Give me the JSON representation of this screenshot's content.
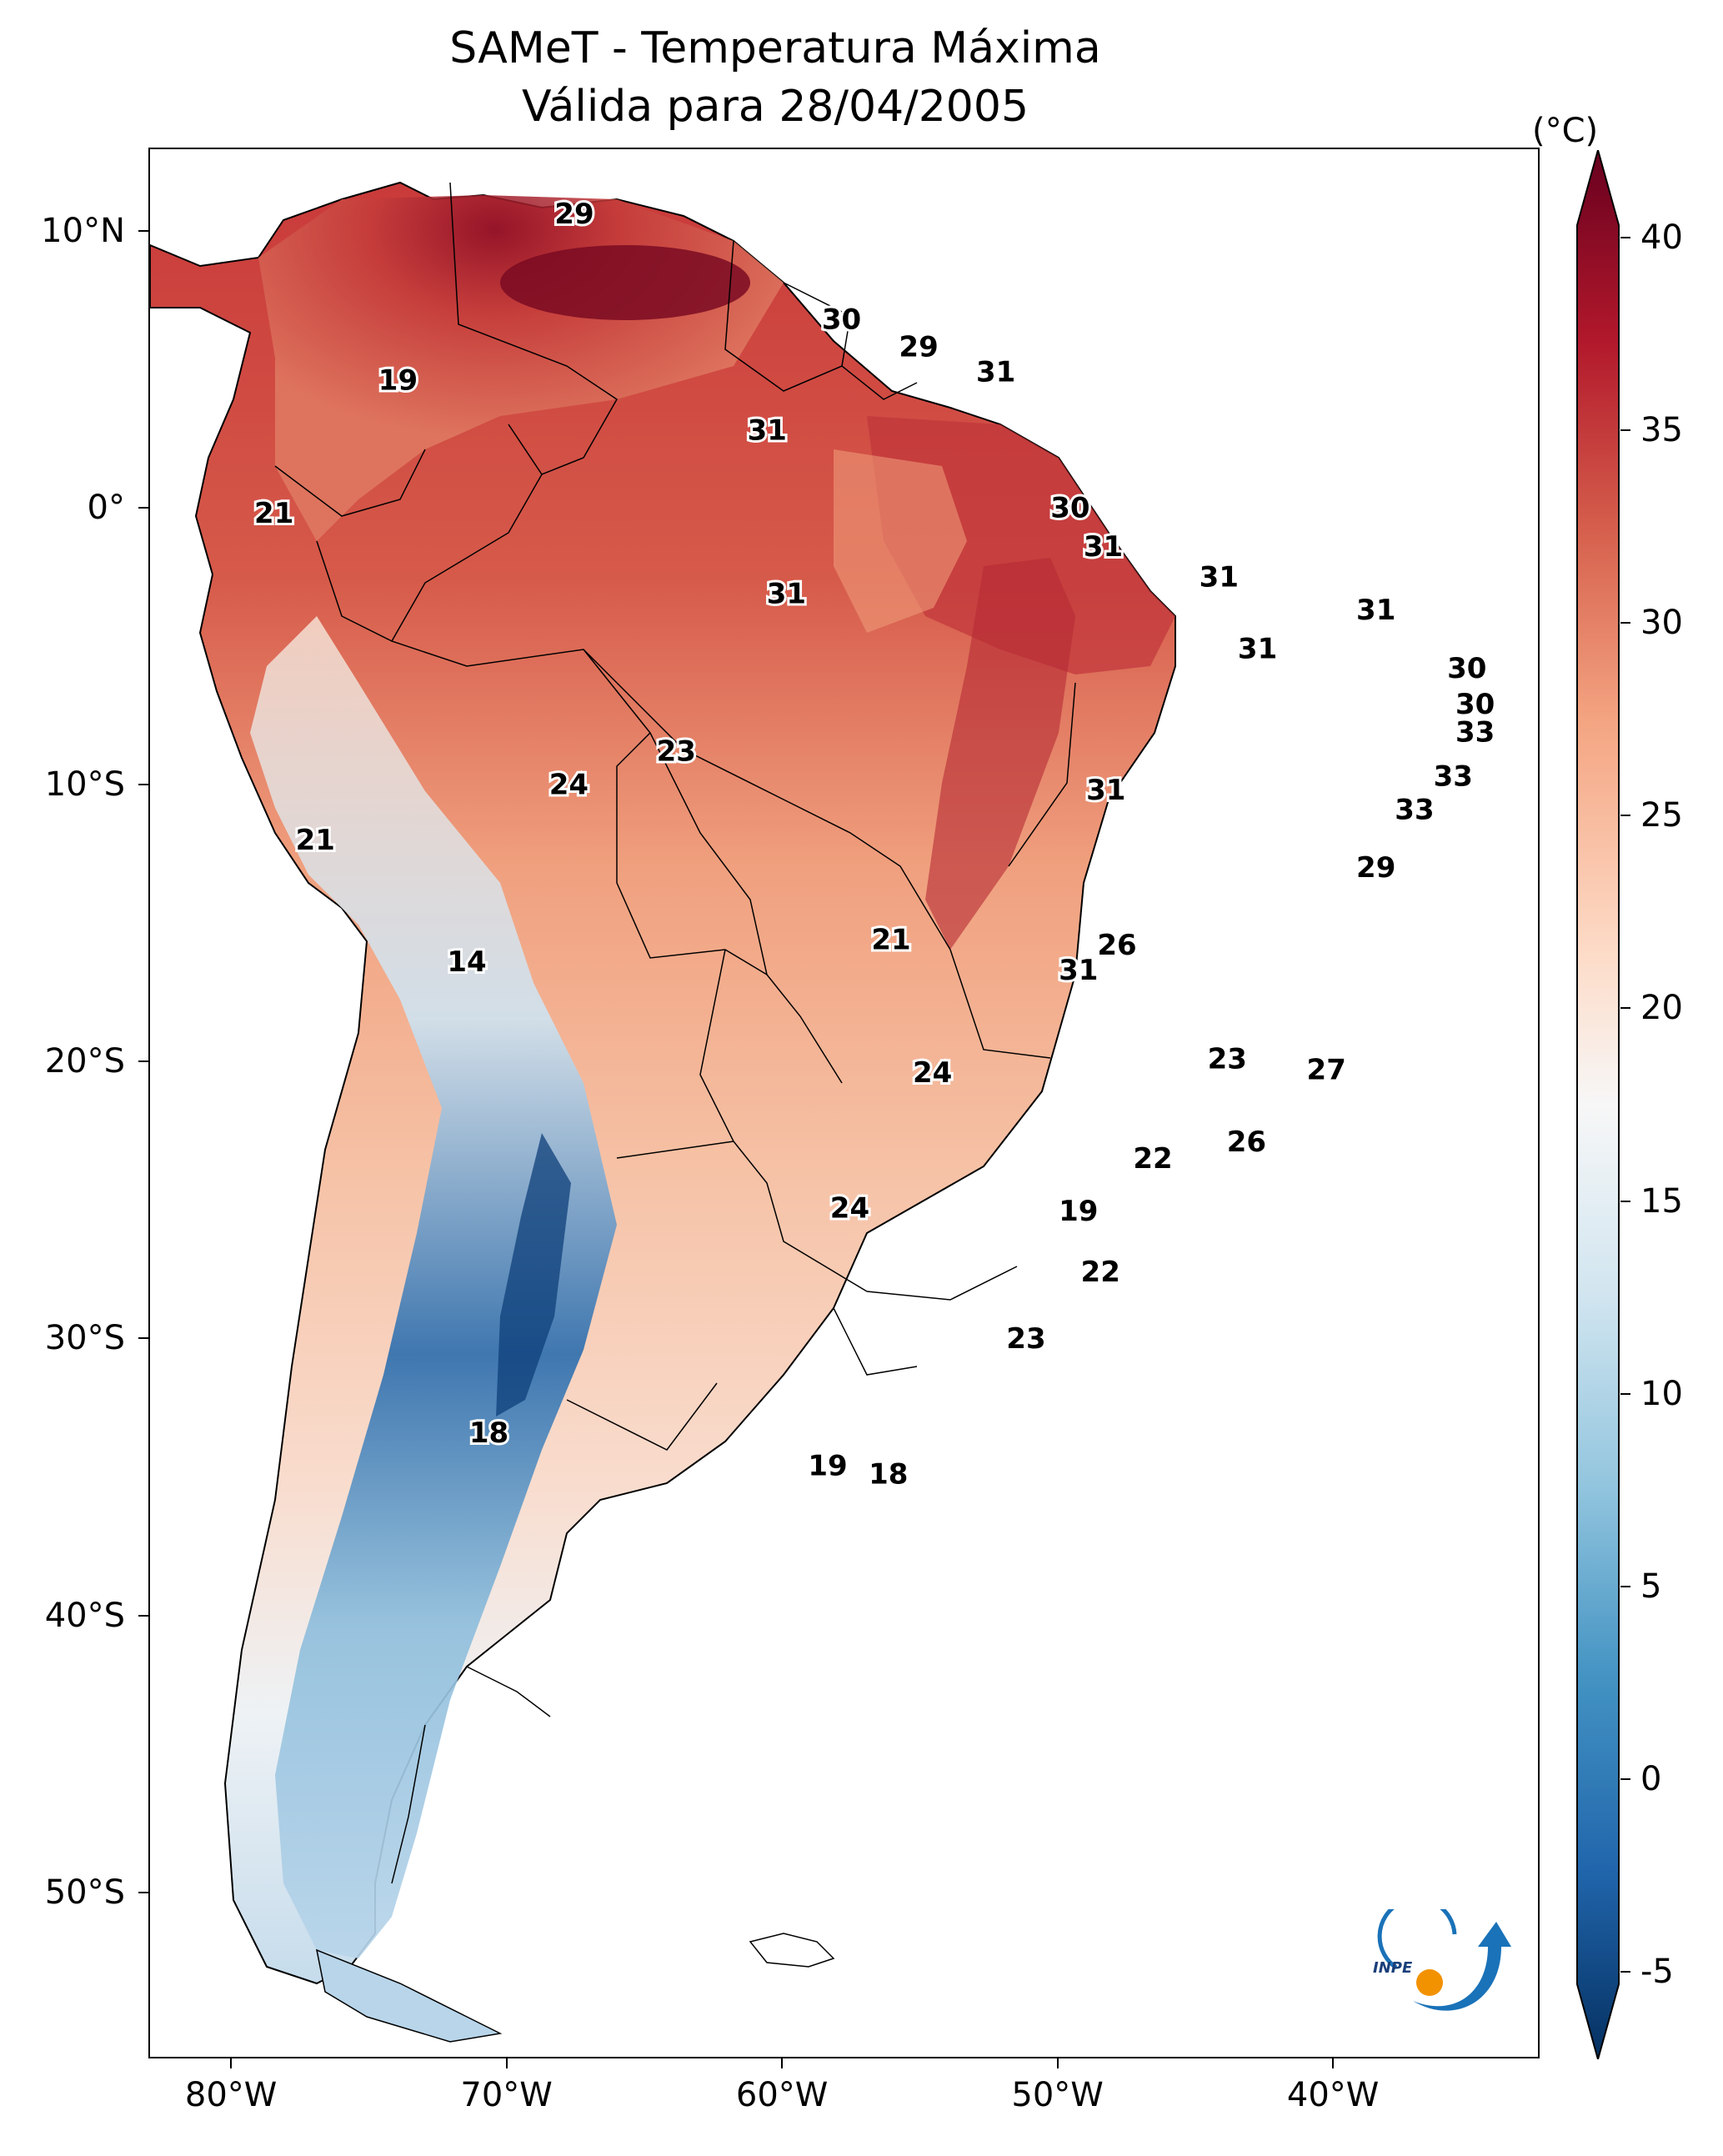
{
  "title_line1": "SAMeT - Temperatura Máxima",
  "title_line2": "Válida para 28/04/2005",
  "colorbar": {
    "unit": "(°C)",
    "ticks": [
      "40",
      "35",
      "30",
      "25",
      "20",
      "15",
      "10",
      "5",
      "0",
      "-5"
    ],
    "colormap": [
      "#67001f",
      "#b2182b",
      "#d6604d",
      "#f4a582",
      "#fddbc7",
      "#f7f7f7",
      "#d1e5f0",
      "#92c5de",
      "#4393c3",
      "#2166ac",
      "#053061"
    ]
  },
  "axes": {
    "lat_labels": [
      "10°N",
      "0°",
      "10°S",
      "20°S",
      "30°S",
      "40°S",
      "50°S"
    ],
    "lon_labels": [
      "80°W",
      "70°W",
      "60°W",
      "50°W",
      "40°W"
    ]
  },
  "map": {
    "region": "South America",
    "lon_range": [
      -83,
      -32.5
    ],
    "lat_range": [
      13,
      -56
    ],
    "station_values": [
      {
        "value": "29",
        "lon": -67.6,
        "lat": 10.6
      },
      {
        "value": "30",
        "lon": -57.9,
        "lat": 6.8
      },
      {
        "value": "29",
        "lon": -55.1,
        "lat": 5.8
      },
      {
        "value": "31",
        "lon": -52.3,
        "lat": 4.9
      },
      {
        "value": "19",
        "lon": -74.0,
        "lat": 4.6
      },
      {
        "value": "31",
        "lon": -60.6,
        "lat": 2.8
      },
      {
        "value": "30",
        "lon": -49.6,
        "lat": 0.0
      },
      {
        "value": "21",
        "lon": -78.5,
        "lat": -0.2
      },
      {
        "value": "31",
        "lon": -48.4,
        "lat": -1.4
      },
      {
        "value": "31",
        "lon": -44.2,
        "lat": -2.5
      },
      {
        "value": "31",
        "lon": -59.9,
        "lat": -3.1
      },
      {
        "value": "31",
        "lon": -38.5,
        "lat": -3.7
      },
      {
        "value": "31",
        "lon": -42.8,
        "lat": -5.1
      },
      {
        "value": "30",
        "lon": -35.2,
        "lat": -5.8
      },
      {
        "value": "30",
        "lon": -34.9,
        "lat": -7.1
      },
      {
        "value": "33",
        "lon": -34.9,
        "lat": -8.1
      },
      {
        "value": "23",
        "lon": -63.9,
        "lat": -8.8
      },
      {
        "value": "24",
        "lon": -67.8,
        "lat": -10.0
      },
      {
        "value": "33",
        "lon": -35.7,
        "lat": -9.7
      },
      {
        "value": "31",
        "lon": -48.3,
        "lat": -10.2
      },
      {
        "value": "33",
        "lon": -37.1,
        "lat": -10.9
      },
      {
        "value": "21",
        "lon": -77.0,
        "lat": -12.0
      },
      {
        "value": "29",
        "lon": -38.5,
        "lat": -13.0
      },
      {
        "value": "21",
        "lon": -56.1,
        "lat": -15.6
      },
      {
        "value": "26",
        "lon": -47.9,
        "lat": -15.8
      },
      {
        "value": "14",
        "lon": -71.5,
        "lat": -16.4
      },
      {
        "value": "31",
        "lon": -49.3,
        "lat": -16.7
      },
      {
        "value": "23",
        "lon": -43.9,
        "lat": -19.9
      },
      {
        "value": "24",
        "lon": -54.6,
        "lat": -20.4
      },
      {
        "value": "27",
        "lon": -40.3,
        "lat": -20.3
      },
      {
        "value": "26",
        "lon": -43.2,
        "lat": -22.9
      },
      {
        "value": "22",
        "lon": -46.6,
        "lat": -23.5
      },
      {
        "value": "24",
        "lon": -57.6,
        "lat": -25.3
      },
      {
        "value": "19",
        "lon": -49.3,
        "lat": -25.4
      },
      {
        "value": "22",
        "lon": -48.5,
        "lat": -27.6
      },
      {
        "value": "23",
        "lon": -51.2,
        "lat": -30.0
      },
      {
        "value": "18",
        "lon": -70.7,
        "lat": -33.4
      },
      {
        "value": "19",
        "lon": -58.4,
        "lat": -34.6
      },
      {
        "value": "18",
        "lon": -56.2,
        "lat": -34.9
      }
    ]
  }
}
